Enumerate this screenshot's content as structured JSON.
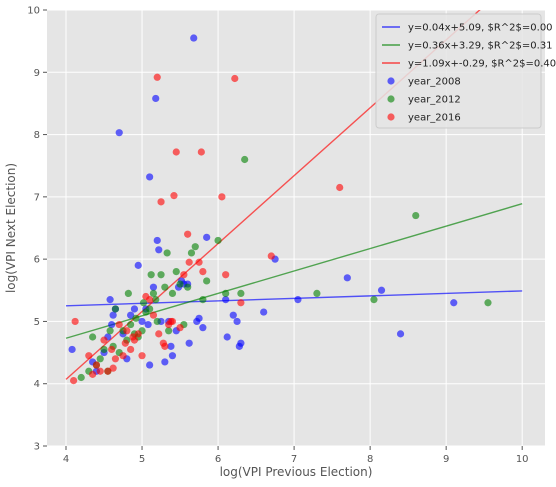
{
  "chart_data": {
    "type": "scatter",
    "title": "",
    "xlabel": "log(VPI Previous Election)",
    "ylabel": "log(VPI Next Election)",
    "xlim": [
      3.75,
      10.3
    ],
    "ylim": [
      3,
      10
    ],
    "xticks": [
      "4",
      "5",
      "6",
      "7",
      "8",
      "9",
      "10"
    ],
    "yticks": [
      "3",
      "4",
      "5",
      "6",
      "7",
      "8",
      "9",
      "10"
    ],
    "grid": true,
    "legend_position": "top-right",
    "series": [
      {
        "name": "year_2008",
        "color": "#0000ff",
        "points": [
          [
            4.08,
            4.55
          ],
          [
            4.35,
            4.35
          ],
          [
            4.4,
            4.2
          ],
          [
            4.5,
            4.5
          ],
          [
            4.55,
            4.75
          ],
          [
            4.58,
            5.35
          ],
          [
            4.6,
            4.95
          ],
          [
            4.62,
            5.1
          ],
          [
            4.65,
            5.2
          ],
          [
            4.7,
            8.03
          ],
          [
            4.75,
            4.8
          ],
          [
            4.8,
            4.4
          ],
          [
            4.85,
            5.1
          ],
          [
            4.9,
            5.2
          ],
          [
            4.95,
            5.9
          ],
          [
            5.0,
            5.0
          ],
          [
            5.05,
            5.2
          ],
          [
            5.08,
            4.95
          ],
          [
            5.1,
            4.3
          ],
          [
            5.15,
            5.55
          ],
          [
            5.18,
            8.58
          ],
          [
            5.2,
            6.3
          ],
          [
            5.22,
            6.15
          ],
          [
            5.25,
            5.0
          ],
          [
            5.3,
            4.35
          ],
          [
            5.35,
            5.0
          ],
          [
            5.38,
            4.6
          ],
          [
            5.4,
            4.45
          ],
          [
            5.45,
            4.85
          ],
          [
            5.48,
            5.55
          ],
          [
            5.52,
            5.65
          ],
          [
            5.55,
            5.6
          ],
          [
            5.6,
            5.6
          ],
          [
            5.62,
            4.65
          ],
          [
            5.68,
            9.55
          ],
          [
            5.72,
            5.0
          ],
          [
            5.75,
            5.05
          ],
          [
            5.8,
            4.9
          ],
          [
            5.85,
            6.35
          ],
          [
            6.1,
            5.35
          ],
          [
            6.12,
            4.75
          ],
          [
            6.2,
            5.1
          ],
          [
            6.25,
            5.0
          ],
          [
            6.28,
            4.6
          ],
          [
            6.3,
            4.65
          ],
          [
            6.6,
            5.15
          ],
          [
            6.75,
            6.0
          ],
          [
            7.05,
            5.35
          ],
          [
            7.7,
            5.7
          ],
          [
            8.15,
            5.5
          ],
          [
            8.4,
            4.8
          ],
          [
            9.1,
            5.3
          ],
          [
            5.1,
            7.32
          ]
        ]
      },
      {
        "name": "year_2012",
        "color": "#008000",
        "points": [
          [
            4.2,
            4.1
          ],
          [
            4.3,
            4.2
          ],
          [
            4.35,
            4.75
          ],
          [
            4.4,
            4.3
          ],
          [
            4.45,
            4.4
          ],
          [
            4.5,
            4.55
          ],
          [
            4.55,
            4.2
          ],
          [
            4.58,
            4.85
          ],
          [
            4.62,
            4.6
          ],
          [
            4.65,
            5.2
          ],
          [
            4.7,
            4.5
          ],
          [
            4.75,
            4.85
          ],
          [
            4.8,
            4.7
          ],
          [
            4.82,
            5.45
          ],
          [
            4.85,
            4.95
          ],
          [
            4.9,
            4.8
          ],
          [
            4.92,
            5.05
          ],
          [
            4.95,
            4.75
          ],
          [
            5.0,
            4.85
          ],
          [
            5.02,
            5.3
          ],
          [
            5.05,
            5.15
          ],
          [
            5.1,
            5.2
          ],
          [
            5.12,
            5.75
          ],
          [
            5.15,
            5.45
          ],
          [
            5.18,
            5.35
          ],
          [
            5.2,
            5.0
          ],
          [
            5.25,
            5.75
          ],
          [
            5.3,
            5.55
          ],
          [
            5.33,
            6.1
          ],
          [
            5.35,
            4.85
          ],
          [
            5.4,
            5.45
          ],
          [
            5.45,
            5.8
          ],
          [
            5.5,
            5.6
          ],
          [
            5.55,
            4.95
          ],
          [
            5.6,
            5.55
          ],
          [
            5.65,
            6.1
          ],
          [
            5.7,
            6.2
          ],
          [
            5.8,
            5.35
          ],
          [
            5.85,
            5.65
          ],
          [
            6.0,
            6.3
          ],
          [
            6.1,
            5.45
          ],
          [
            6.3,
            5.45
          ],
          [
            6.35,
            7.6
          ],
          [
            7.3,
            5.45
          ],
          [
            8.05,
            5.35
          ],
          [
            8.6,
            6.7
          ],
          [
            9.55,
            5.3
          ]
        ]
      },
      {
        "name": "year_2016",
        "color": "#ff0000",
        "points": [
          [
            4.1,
            4.05
          ],
          [
            4.12,
            5.0
          ],
          [
            4.3,
            4.45
          ],
          [
            4.35,
            4.15
          ],
          [
            4.4,
            4.3
          ],
          [
            4.45,
            4.2
          ],
          [
            4.5,
            4.7
          ],
          [
            4.55,
            4.2
          ],
          [
            4.6,
            4.55
          ],
          [
            4.62,
            4.25
          ],
          [
            4.65,
            4.4
          ],
          [
            4.7,
            4.95
          ],
          [
            4.75,
            4.45
          ],
          [
            4.78,
            4.65
          ],
          [
            4.8,
            4.85
          ],
          [
            4.85,
            4.55
          ],
          [
            4.88,
            4.75
          ],
          [
            4.9,
            4.7
          ],
          [
            4.95,
            4.8
          ],
          [
            5.0,
            4.45
          ],
          [
            5.05,
            5.4
          ],
          [
            5.1,
            5.35
          ],
          [
            5.15,
            5.1
          ],
          [
            5.2,
            8.92
          ],
          [
            5.22,
            4.8
          ],
          [
            5.25,
            6.92
          ],
          [
            5.28,
            4.65
          ],
          [
            5.3,
            4.6
          ],
          [
            5.35,
            4.95
          ],
          [
            5.38,
            5.0
          ],
          [
            5.4,
            5.0
          ],
          [
            5.42,
            7.02
          ],
          [
            5.45,
            7.72
          ],
          [
            5.5,
            4.9
          ],
          [
            5.55,
            5.75
          ],
          [
            5.6,
            6.4
          ],
          [
            5.62,
            5.95
          ],
          [
            5.75,
            5.95
          ],
          [
            5.78,
            7.72
          ],
          [
            5.8,
            5.8
          ],
          [
            6.05,
            7.0
          ],
          [
            6.1,
            5.75
          ],
          [
            6.22,
            8.9
          ],
          [
            6.3,
            5.3
          ],
          [
            6.7,
            6.05
          ],
          [
            7.6,
            7.15
          ]
        ]
      }
    ],
    "lines": [
      {
        "label": "y=0.04x+5.09, $R^2$=0.00",
        "color": "#0000ff",
        "slope": 0.04,
        "intercept": 5.09
      },
      {
        "label": "y=0.36x+3.29, $R^2$=0.31",
        "color": "#008000",
        "slope": 0.36,
        "intercept": 3.29
      },
      {
        "label": "y=1.09x+-0.29, $R^2$=0.40",
        "color": "#ff0000",
        "slope": 1.09,
        "intercept": -0.29
      }
    ]
  }
}
